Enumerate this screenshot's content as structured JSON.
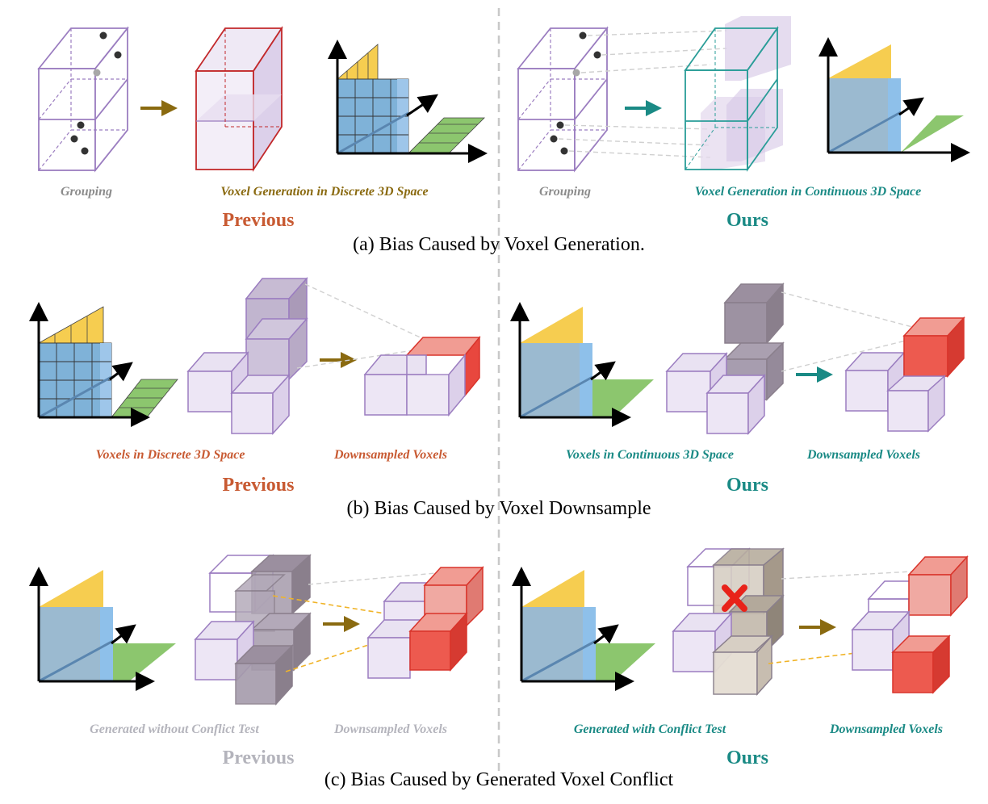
{
  "colors": {
    "previous": "#c85a32",
    "ours": "#1a8a85",
    "olive": "#8a6a10",
    "gray_label": "#8c8c8c",
    "light_gray_label": "#b4b4bc",
    "purple_line": "#9b7dc0",
    "purple_fill": "#dcd0ea",
    "red_cube": "#e8473e",
    "teal_line": "#2a9d98",
    "yellow_plane": "#f6cd50",
    "blue_plane": "#7fb2d8",
    "green_plane": "#8cc66e",
    "dark_gray_cube": "#8a7f8c",
    "beige_cube": "#d7cfc4",
    "divider": "#c8c8c8"
  },
  "icons": [
    "voxel-grid",
    "point-dots",
    "arrow",
    "axes-3d",
    "voxel-cube",
    "cross-mark"
  ],
  "panel_a": {
    "left_grouping": "Grouping",
    "left_generation": "Voxel Generation in Discrete 3D Space",
    "left_title": "Previous",
    "right_grouping": "Grouping",
    "right_generation": "Voxel Generation in Continuous 3D Space",
    "right_title": "Ours",
    "caption": "(a) Bias Caused by Voxel Generation."
  },
  "panel_b": {
    "left_voxels": "Voxels in Discrete 3D Space",
    "left_down": "Downsampled Voxels",
    "left_title": "Previous",
    "right_voxels": "Voxels in Continuous 3D Space",
    "right_down": "Downsampled Voxels",
    "right_title": "Ours",
    "caption": "(b) Bias Caused by Voxel Downsample"
  },
  "panel_c": {
    "left_voxels": "Generated without Conflict Test",
    "left_down": "Downsampled Voxels",
    "left_title": "Previous",
    "right_voxels": "Generated with Conflict Test",
    "right_down": "Downsampled Voxels",
    "right_title": "Ours",
    "caption": "(c) Bias Caused by Generated Voxel Conflict"
  }
}
